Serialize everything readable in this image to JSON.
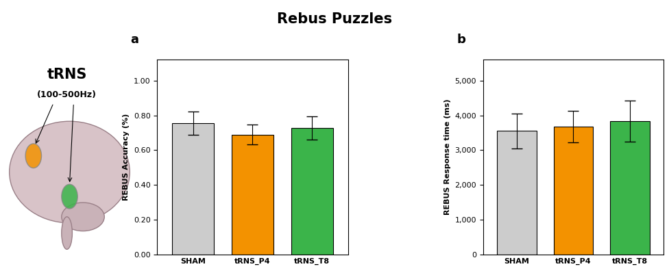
{
  "title": "Rebus Puzzles",
  "illustration": {
    "label": "tRNS",
    "sublabel": "(100-500Hz)"
  },
  "chart_data": [
    {
      "type": "bar",
      "panel": "a",
      "categories": [
        "SHAM",
        "tRNS_P4",
        "tRNS_T8"
      ],
      "values": [
        0.755,
        0.69,
        0.728
      ],
      "errors": [
        0.065,
        0.058,
        0.068
      ],
      "colors": [
        "#cccccc",
        "#f39200",
        "#3bb44a"
      ],
      "y_label": "REBUS Accuracy (%)",
      "ylim": [
        0,
        1.12
      ],
      "yticks": [
        {
          "value": 0,
          "label": "0.00"
        },
        {
          "value": 0.2,
          "label": "0.20"
        },
        {
          "value": 0.4,
          "label": "0.40"
        },
        {
          "value": 0.6,
          "label": "0.60"
        },
        {
          "value": 0.8,
          "label": "0.80"
        },
        {
          "value": 1.0,
          "label": "1.00"
        }
      ],
      "grid": false
    },
    {
      "type": "bar",
      "panel": "b",
      "categories": [
        "SHAM",
        "tRNS_P4",
        "tRNS_T8"
      ],
      "values": [
        3550,
        3680,
        3840
      ],
      "errors": [
        500,
        450,
        590
      ],
      "colors": [
        "#cccccc",
        "#f39200",
        "#3bb44a"
      ],
      "y_label": "REBUS Response time (ms)",
      "ylim": [
        0,
        5600
      ],
      "yticks": [
        0,
        {
          "value": 1000,
          "label": "1,000"
        },
        {
          "value": 2000,
          "label": "2,000"
        },
        {
          "value": 3000,
          "label": "3,000"
        },
        {
          "value": 4000,
          "label": "4,000"
        },
        {
          "value": 5000,
          "label": "5,000"
        }
      ],
      "grid": false
    }
  ]
}
